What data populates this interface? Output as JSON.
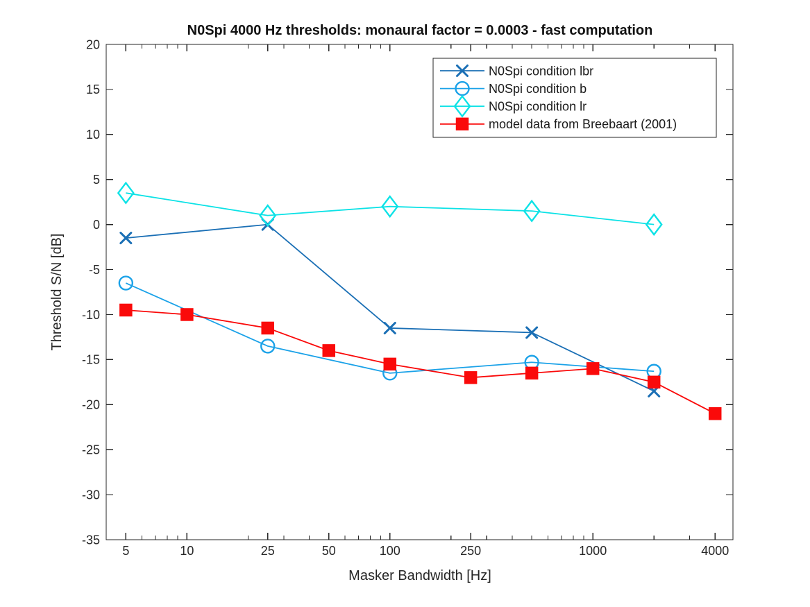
{
  "figure": {
    "background": "#ffffff",
    "axis_color": "#262626",
    "text_color": "#262626"
  },
  "chart_data": {
    "type": "line",
    "title": "N0Spi 4000 Hz thresholds: monaural factor = 0.0003 - fast computation",
    "xlabel": "Masker Bandwidth [Hz]",
    "ylabel": "Threshold S/N [dB]",
    "x_scale": "log",
    "xlim": [
      4,
      4900
    ],
    "ylim": [
      -35,
      20
    ],
    "x_ticks": [
      5,
      10,
      25,
      50,
      100,
      250,
      1000,
      4000
    ],
    "x_minor_ticks": [
      6,
      7,
      8,
      9,
      20,
      30,
      40,
      60,
      70,
      80,
      90,
      200,
      300,
      400,
      500,
      600,
      700,
      800,
      900,
      2000,
      3000
    ],
    "y_ticks": [
      20,
      15,
      10,
      5,
      0,
      -5,
      -10,
      -15,
      -20,
      -25,
      -30,
      -35
    ],
    "grid": "off",
    "legend_position": "top-right",
    "series": [
      {
        "name": "N0Spi condition lbr",
        "marker": "x",
        "filled": false,
        "color": "#1a6fb5",
        "x": [
          5,
          25,
          100,
          500,
          2000
        ],
        "y": [
          -1.5,
          0,
          -11.5,
          -12,
          -18.5
        ]
      },
      {
        "name": "N0Spi condition b",
        "marker": "circle",
        "filled": false,
        "color": "#1ba2e8",
        "x": [
          5,
          25,
          100,
          500,
          2000
        ],
        "y": [
          -6.5,
          -13.5,
          -16.5,
          -15.3,
          -16.3
        ]
      },
      {
        "name": "N0Spi condition lr",
        "marker": "diamond",
        "filled": false,
        "color": "#0ce2e6",
        "x": [
          5,
          25,
          100,
          500,
          2000
        ],
        "y": [
          3.5,
          1,
          2,
          1.5,
          0
        ]
      },
      {
        "name": "model data from Breebaart (2001)",
        "marker": "square",
        "filled": true,
        "color": "#fa0a0a",
        "x": [
          5,
          10,
          25,
          50,
          100,
          250,
          500,
          1000,
          2000,
          4000
        ],
        "y": [
          -9.5,
          -10,
          -11.5,
          -14,
          -15.5,
          -17,
          -16.5,
          -16,
          -17.5,
          -21
        ]
      }
    ]
  }
}
